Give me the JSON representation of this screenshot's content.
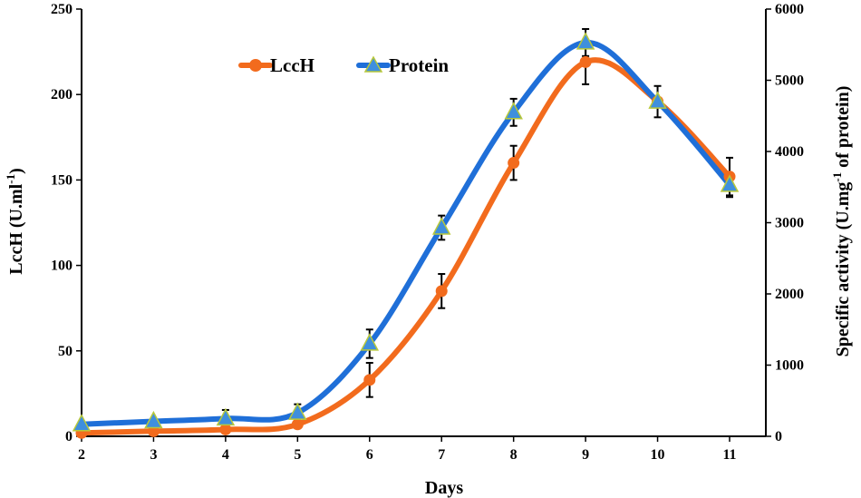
{
  "chart_data": {
    "type": "line",
    "title": "",
    "x": [
      2,
      3,
      4,
      5,
      6,
      7,
      8,
      9,
      10,
      11
    ],
    "x_ticks": [
      "2",
      "3",
      "4",
      "5",
      "6",
      "7",
      "8",
      "9",
      "10",
      "11"
    ],
    "xlabel": "Days",
    "xlim": [
      2,
      11
    ],
    "y_left": {
      "label": "LccH (U.ml",
      "label_sup": "-1",
      "label_end": ")",
      "ylim": [
        0,
        250
      ],
      "ticks": [
        "0",
        "50",
        "100",
        "150",
        "200",
        "250"
      ]
    },
    "y_right": {
      "label": "Specific activity (U.mg",
      "label_sup": "-1",
      "label_end": " of protein)",
      "ylim": [
        0,
        6000
      ],
      "ticks": [
        "0",
        "1000",
        "2000",
        "3000",
        "4000",
        "5000",
        "6000"
      ]
    },
    "series": [
      {
        "name": "LccH",
        "axis": "left",
        "marker": "circle",
        "color": "#F26B1D",
        "values": [
          2,
          3,
          4,
          7,
          33,
          85,
          160,
          219,
          196,
          152
        ],
        "errors": [
          0,
          0,
          0,
          0,
          10,
          10,
          10,
          13,
          0,
          11
        ]
      },
      {
        "name": "Protein",
        "axis": "right",
        "marker": "triangle",
        "color": "#1F6FD8",
        "marker_fill": "#3F8FDD",
        "marker_edge": "#B8C83A",
        "values": [
          170,
          210,
          250,
          330,
          1300,
          2930,
          4550,
          5530,
          4700,
          3530
        ],
        "errors": [
          0,
          0,
          120,
          120,
          200,
          170,
          190,
          190,
          220,
          170
        ]
      }
    ],
    "grid": false,
    "legend_position": "top-center"
  }
}
